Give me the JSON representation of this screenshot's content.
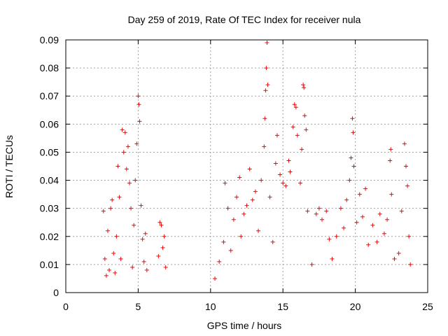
{
  "chart_data": {
    "type": "scatter",
    "title": "Day 259 of 2019, Rate Of TEC Index for receiver nula",
    "xlabel": "GPS time / hours",
    "ylabel": "ROTI / TECUs",
    "xlim": [
      0,
      25
    ],
    "ylim": [
      0,
      0.09
    ],
    "xticks": [
      "0",
      "5",
      "10",
      "15",
      "20",
      "25"
    ],
    "yticks": [
      "0",
      "0.01",
      "0.02",
      "0.03",
      "0.04",
      "0.05",
      "0.06",
      "0.07",
      "0.08",
      "0.09"
    ],
    "grid": true,
    "marker": "+",
    "color": "#ff0000",
    "series": [
      {
        "points": [
          [
            2.6,
            0.029
          ],
          [
            2.7,
            0.012
          ],
          [
            2.8,
            0.006
          ],
          [
            2.9,
            0.022
          ],
          [
            3.0,
            0.008
          ],
          [
            3.1,
            0.03
          ],
          [
            3.2,
            0.033
          ],
          [
            3.3,
            0.014
          ],
          [
            3.4,
            0.007
          ],
          [
            3.5,
            0.02
          ],
          [
            3.6,
            0.045
          ],
          [
            3.7,
            0.034
          ],
          [
            3.8,
            0.012
          ],
          [
            3.9,
            0.058
          ],
          [
            4.0,
            0.05
          ],
          [
            4.1,
            0.057
          ],
          [
            4.2,
            0.044
          ],
          [
            4.3,
            0.052
          ],
          [
            4.4,
            0.039
          ],
          [
            4.5,
            0.03
          ],
          [
            4.6,
            0.009
          ],
          [
            4.7,
            0.024
          ],
          [
            4.8,
            0.04
          ],
          [
            4.9,
            0.053
          ],
          [
            5.0,
            0.07
          ],
          [
            5.05,
            0.067
          ],
          [
            5.1,
            0.061
          ],
          [
            5.2,
            0.031
          ],
          [
            5.3,
            0.019
          ],
          [
            5.4,
            0.011
          ],
          [
            5.5,
            0.021
          ],
          [
            5.6,
            0.008
          ],
          [
            6.4,
            0.013
          ],
          [
            6.5,
            0.025
          ],
          [
            6.6,
            0.024
          ],
          [
            6.7,
            0.016
          ],
          [
            6.8,
            0.02
          ],
          [
            6.9,
            0.009
          ],
          [
            10.3,
            0.005
          ],
          [
            10.6,
            0.011
          ],
          [
            10.9,
            0.018
          ],
          [
            11.0,
            0.039
          ],
          [
            11.2,
            0.03
          ],
          [
            11.4,
            0.015
          ],
          [
            11.6,
            0.026
          ],
          [
            11.8,
            0.034
          ],
          [
            12.0,
            0.041
          ],
          [
            12.1,
            0.02
          ],
          [
            12.3,
            0.028
          ],
          [
            12.5,
            0.031
          ],
          [
            12.7,
            0.044
          ],
          [
            12.9,
            0.033
          ],
          [
            13.1,
            0.036
          ],
          [
            13.3,
            0.022
          ],
          [
            13.5,
            0.04
          ],
          [
            13.7,
            0.052
          ],
          [
            13.75,
            0.062
          ],
          [
            13.8,
            0.072
          ],
          [
            13.85,
            0.08
          ],
          [
            13.9,
            0.089
          ],
          [
            13.95,
            0.074
          ],
          [
            14.1,
            0.034
          ],
          [
            14.3,
            0.018
          ],
          [
            14.5,
            0.046
          ],
          [
            14.6,
            0.056
          ],
          [
            14.8,
            0.042
          ],
          [
            15.0,
            0.039
          ],
          [
            15.2,
            0.038
          ],
          [
            15.4,
            0.047
          ],
          [
            15.5,
            0.043
          ],
          [
            15.7,
            0.059
          ],
          [
            15.8,
            0.067
          ],
          [
            15.9,
            0.066
          ],
          [
            16.0,
            0.056
          ],
          [
            16.2,
            0.039
          ],
          [
            16.3,
            0.051
          ],
          [
            16.4,
            0.074
          ],
          [
            16.45,
            0.073
          ],
          [
            16.5,
            0.063
          ],
          [
            16.6,
            0.058
          ],
          [
            16.7,
            0.029
          ],
          [
            17.0,
            0.01
          ],
          [
            17.3,
            0.028
          ],
          [
            17.5,
            0.03
          ],
          [
            17.7,
            0.026
          ],
          [
            18.0,
            0.029
          ],
          [
            18.2,
            0.019
          ],
          [
            18.4,
            0.012
          ],
          [
            18.7,
            0.02
          ],
          [
            19.0,
            0.03
          ],
          [
            19.2,
            0.023
          ],
          [
            19.4,
            0.033
          ],
          [
            19.6,
            0.04
          ],
          [
            19.7,
            0.048
          ],
          [
            19.8,
            0.062
          ],
          [
            19.85,
            0.057
          ],
          [
            19.9,
            0.045
          ],
          [
            20.1,
            0.025
          ],
          [
            20.3,
            0.035
          ],
          [
            20.5,
            0.027
          ],
          [
            20.7,
            0.037
          ],
          [
            20.9,
            0.017
          ],
          [
            21.2,
            0.024
          ],
          [
            21.5,
            0.018
          ],
          [
            21.7,
            0.028
          ],
          [
            22.0,
            0.021
          ],
          [
            22.2,
            0.026
          ],
          [
            22.4,
            0.047
          ],
          [
            22.45,
            0.051
          ],
          [
            22.5,
            0.035
          ],
          [
            22.7,
            0.012
          ],
          [
            23.0,
            0.014
          ],
          [
            23.2,
            0.029
          ],
          [
            23.4,
            0.053
          ],
          [
            23.5,
            0.045
          ],
          [
            23.6,
            0.038
          ],
          [
            23.7,
            0.02
          ],
          [
            23.8,
            0.01
          ]
        ]
      }
    ]
  }
}
